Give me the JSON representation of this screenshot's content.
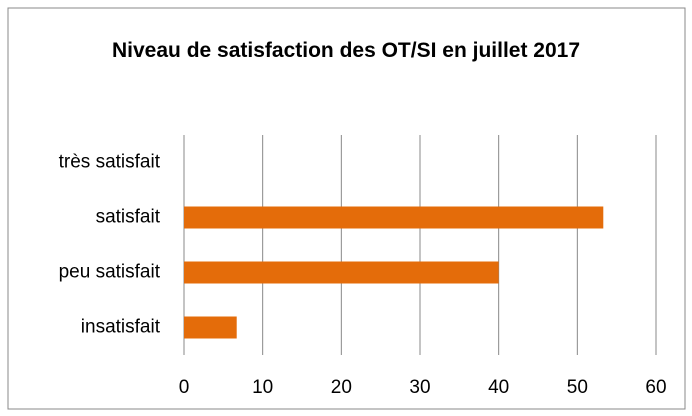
{
  "chart_data": {
    "type": "bar",
    "orientation": "horizontal",
    "title": "Niveau de satisfaction des OT/SI en juillet 2017",
    "categories": [
      "très satisfait",
      "satisfait",
      "peu satisfait",
      "insatisfait"
    ],
    "values": [
      0,
      53.3,
      40,
      6.7
    ],
    "color": "#e46c0a",
    "xlim": [
      0,
      60
    ],
    "xticks": [
      0,
      10,
      20,
      30,
      40,
      50,
      60
    ],
    "grid": true
  }
}
